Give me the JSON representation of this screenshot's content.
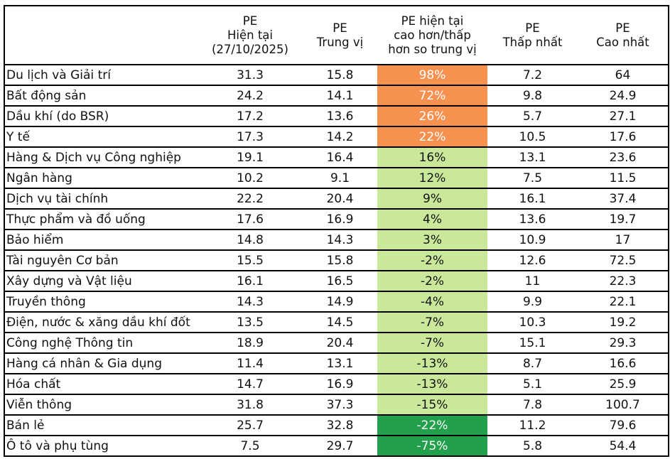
{
  "header": {
    "sector": "",
    "pe_current": [
      "PE",
      "Hiện tại",
      "(27/10/2025)"
    ],
    "pe_median": [
      "PE",
      "Trung vị"
    ],
    "diff": [
      "PE hiện tại",
      "cao hơn/thấp",
      "hơn so trung vị"
    ],
    "pe_min": [
      "PE",
      "Thấp nhất"
    ],
    "pe_max": [
      "PE",
      "Cao nhất"
    ]
  },
  "colors": {
    "hot": "#f79150",
    "mild": "#c9e89a",
    "cold": "#23a04c"
  },
  "rows": [
    {
      "sector": "Du lịch và Giải trí",
      "pe_current": "31.3",
      "pe_median": "15.8",
      "diff": "98%",
      "level": "hot",
      "pe_min": "7.2",
      "pe_max": "64"
    },
    {
      "sector": "Bất động sản",
      "pe_current": "24.2",
      "pe_median": "14.1",
      "diff": "72%",
      "level": "hot",
      "pe_min": "9.8",
      "pe_max": "24.9"
    },
    {
      "sector": "Dầu khí (do BSR)",
      "pe_current": "17.2",
      "pe_median": "13.6",
      "diff": "26%",
      "level": "hot",
      "pe_min": "5.7",
      "pe_max": "27.1"
    },
    {
      "sector": "Y tế",
      "pe_current": "17.3",
      "pe_median": "14.2",
      "diff": "22%",
      "level": "hot",
      "pe_min": "10.5",
      "pe_max": "17.6"
    },
    {
      "sector": "Hàng & Dịch vụ Công nghiệp",
      "pe_current": "19.1",
      "pe_median": "16.4",
      "diff": "16%",
      "level": "mild",
      "pe_min": "13.1",
      "pe_max": "23.6"
    },
    {
      "sector": "Ngân hàng",
      "pe_current": "10.2",
      "pe_median": "9.1",
      "diff": "12%",
      "level": "mild",
      "pe_min": "7.5",
      "pe_max": "11.5"
    },
    {
      "sector": "Dịch vụ tài chính",
      "pe_current": "22.2",
      "pe_median": "20.4",
      "diff": "9%",
      "level": "mild",
      "pe_min": "16.1",
      "pe_max": "37.4"
    },
    {
      "sector": "Thực phẩm và đồ uống",
      "pe_current": "17.6",
      "pe_median": "16.9",
      "diff": "4%",
      "level": "mild",
      "pe_min": "13.6",
      "pe_max": "19.7"
    },
    {
      "sector": "Bảo hiểm",
      "pe_current": "14.8",
      "pe_median": "14.3",
      "diff": "3%",
      "level": "mild",
      "pe_min": "10.9",
      "pe_max": "17"
    },
    {
      "sector": "Tài nguyên Cơ bản",
      "pe_current": "15.5",
      "pe_median": "15.8",
      "diff": "-2%",
      "level": "mild",
      "pe_min": "12.6",
      "pe_max": "72.5"
    },
    {
      "sector": "Xây dựng và Vật liệu",
      "pe_current": "16.1",
      "pe_median": "16.5",
      "diff": "-2%",
      "level": "mild",
      "pe_min": "11",
      "pe_max": "22.3"
    },
    {
      "sector": "Truyền thông",
      "pe_current": "14.3",
      "pe_median": "14.9",
      "diff": "-4%",
      "level": "mild",
      "pe_min": "9.9",
      "pe_max": "22.1"
    },
    {
      "sector": "Điện, nước & xăng dầu khí đốt",
      "pe_current": "13.5",
      "pe_median": "14.5",
      "diff": "-7%",
      "level": "mild",
      "pe_min": "10.3",
      "pe_max": "19.2"
    },
    {
      "sector": "Công nghệ Thông tin",
      "pe_current": "18.9",
      "pe_median": "20.4",
      "diff": "-7%",
      "level": "mild",
      "pe_min": "15.1",
      "pe_max": "29.3"
    },
    {
      "sector": "Hàng cá nhân & Gia dụng",
      "pe_current": "11.4",
      "pe_median": "13.1",
      "diff": "-13%",
      "level": "mild",
      "pe_min": "8.7",
      "pe_max": "16.6"
    },
    {
      "sector": "Hóa chất",
      "pe_current": "14.7",
      "pe_median": "16.9",
      "diff": "-13%",
      "level": "mild",
      "pe_min": "5.1",
      "pe_max": "25.9"
    },
    {
      "sector": "Viễn thông",
      "pe_current": "31.8",
      "pe_median": "37.3",
      "diff": "-15%",
      "level": "mild",
      "pe_min": "7.8",
      "pe_max": "100.7"
    },
    {
      "sector": "Bán lẻ",
      "pe_current": "25.7",
      "pe_median": "32.8",
      "diff": "-22%",
      "level": "cold",
      "pe_min": "11.2",
      "pe_max": "79.6"
    },
    {
      "sector": "Ô tô và phụ tùng",
      "pe_current": "7.5",
      "pe_median": "29.7",
      "diff": "-75%",
      "level": "cold",
      "pe_min": "5.8",
      "pe_max": "54.4"
    }
  ]
}
